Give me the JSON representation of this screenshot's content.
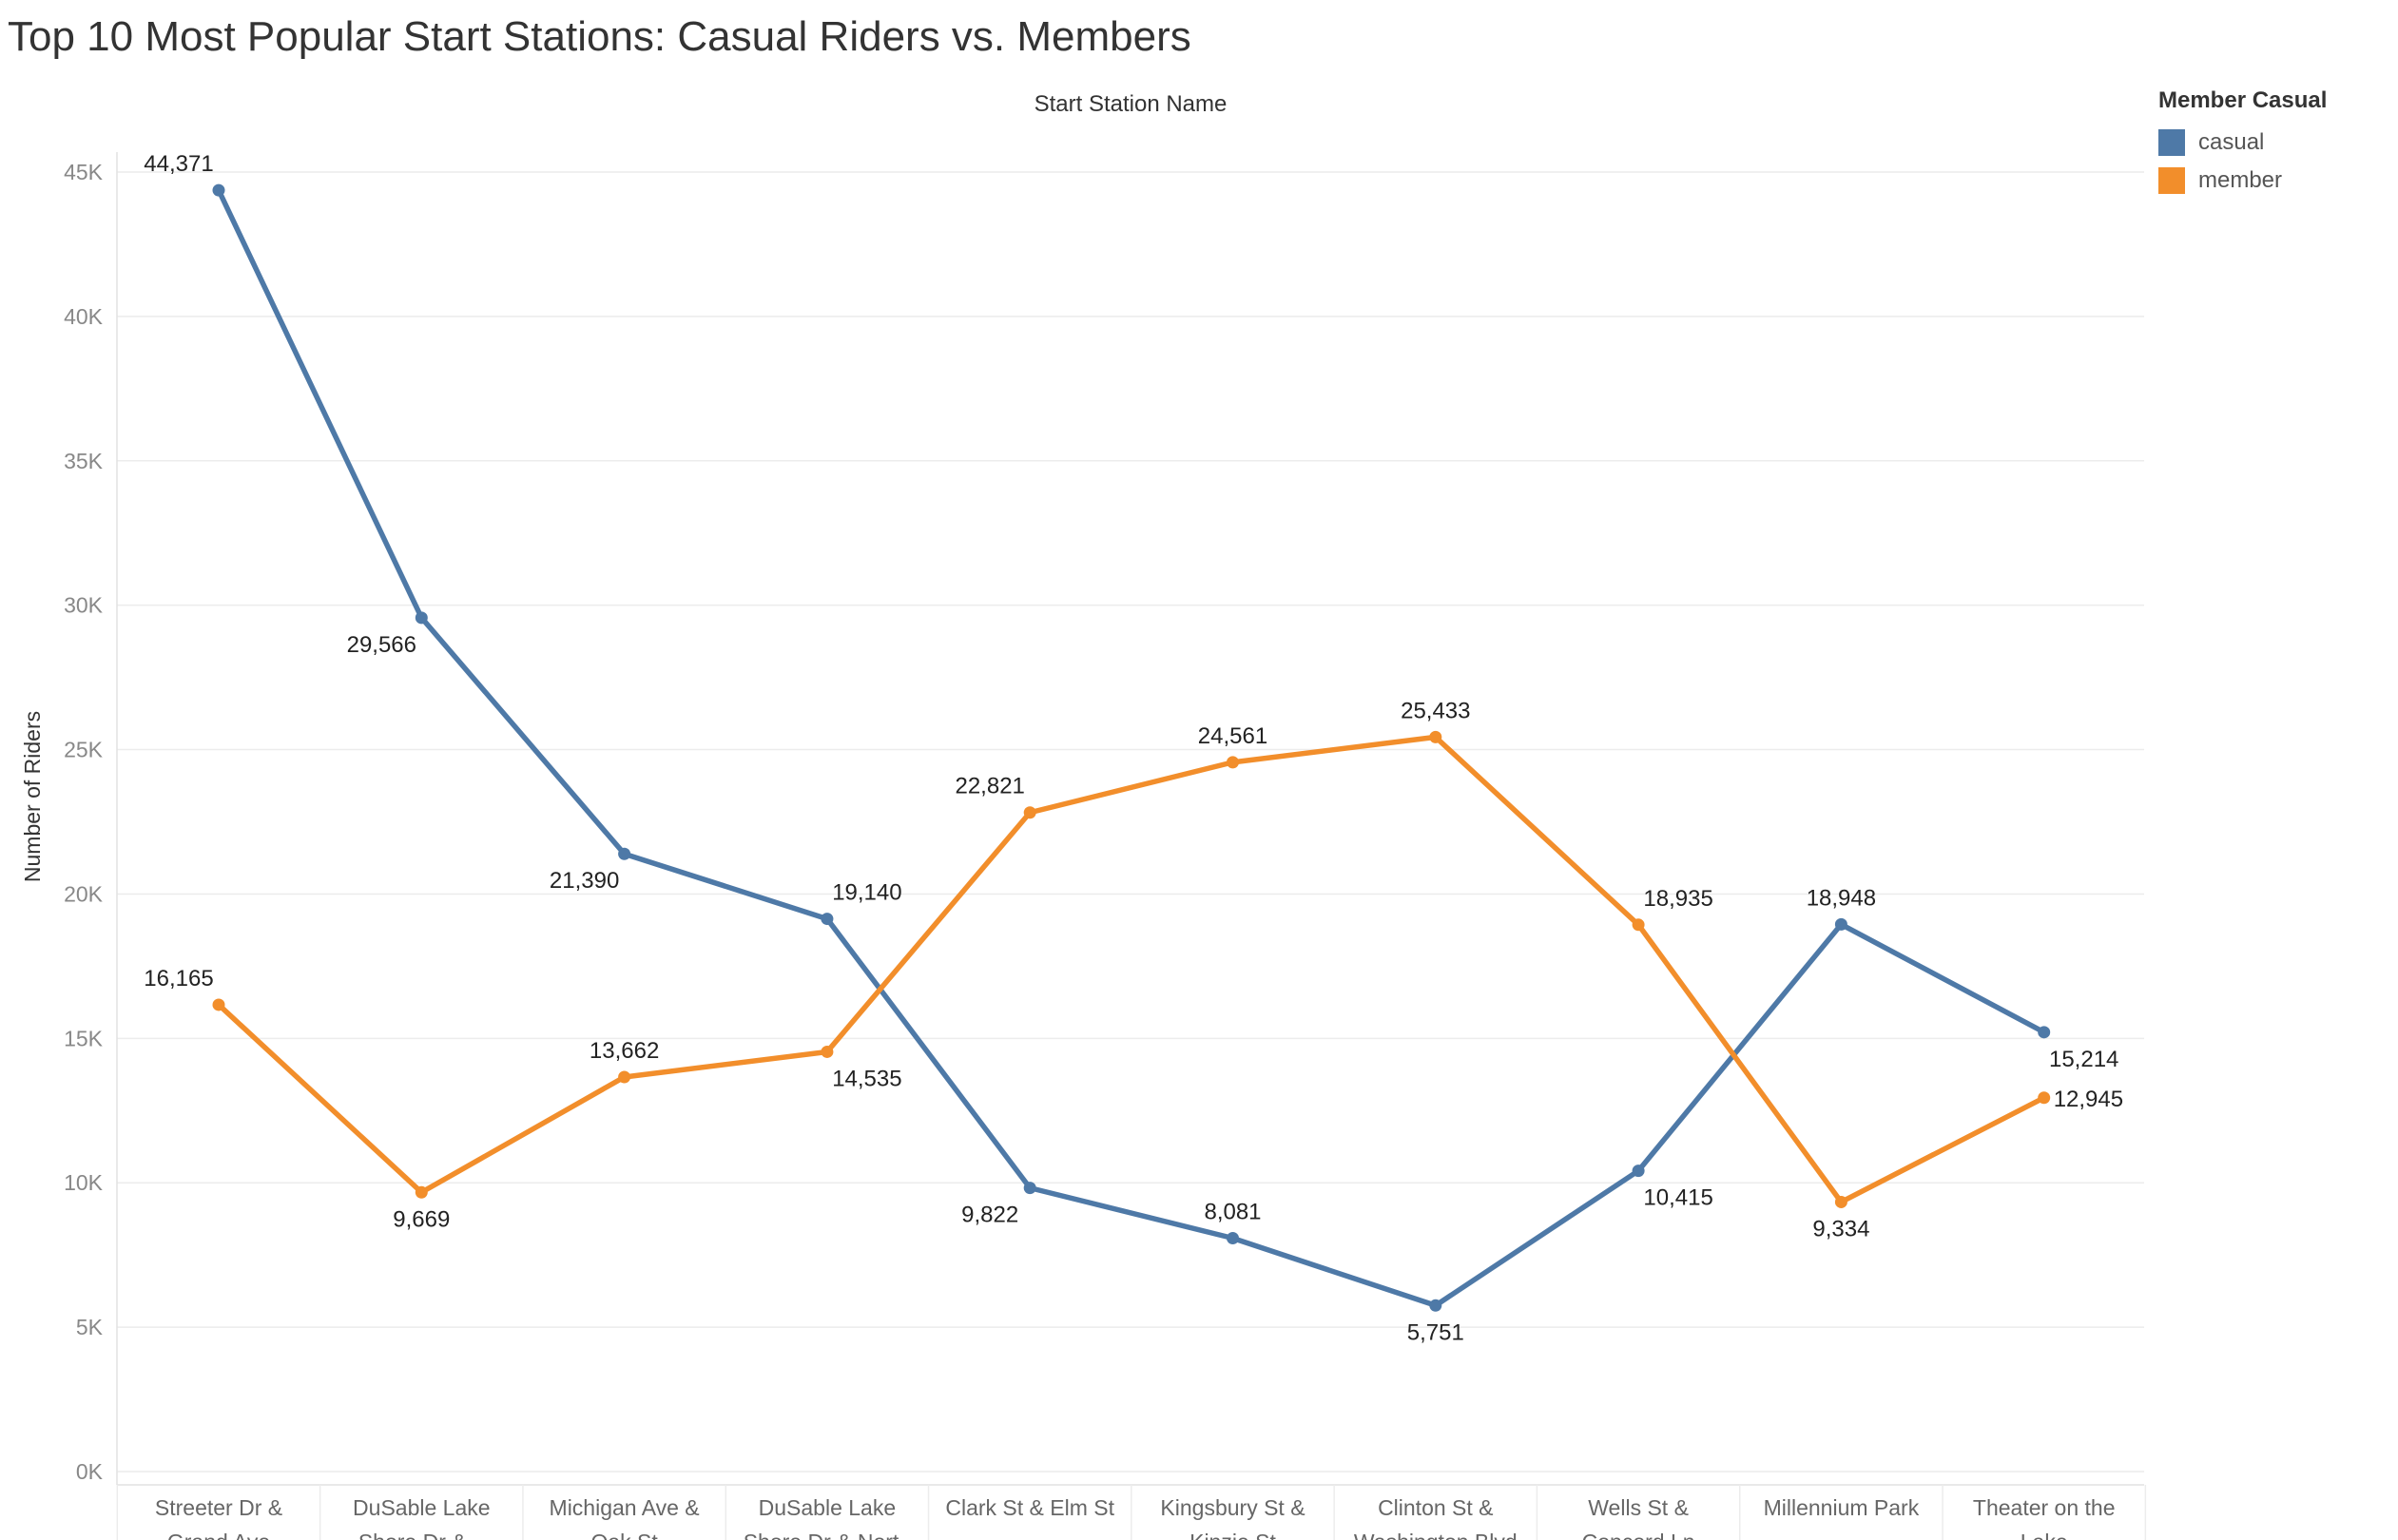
{
  "title": "Top 10 Most Popular Start Stations: Casual Riders vs. Members",
  "legend": {
    "title": "Member Casual",
    "items": [
      {
        "label": "casual",
        "color": "#4e79a7"
      },
      {
        "label": "member",
        "color": "#f28e2b"
      }
    ]
  },
  "chart_data": {
    "type": "line",
    "title": "Top 10 Most Popular Start Stations: Casual Riders vs. Members",
    "xlabel": "Start Station Name",
    "ylabel": "Number of Riders",
    "ylim": [
      0,
      45000
    ],
    "yticks": [
      0,
      5000,
      10000,
      15000,
      20000,
      25000,
      30000,
      35000,
      40000,
      45000
    ],
    "ytick_labels": [
      "0K",
      "5K",
      "10K",
      "15K",
      "20K",
      "25K",
      "30K",
      "35K",
      "40K",
      "45K"
    ],
    "grid": true,
    "legend_position": "top-right",
    "categories": [
      [
        "Streeter Dr &",
        "Grand Ave"
      ],
      [
        "DuSable Lake",
        "Shore Dr & .."
      ],
      [
        "Michigan Ave &",
        "Oak St"
      ],
      [
        "DuSable Lake",
        "Shore Dr & Nort.."
      ],
      [
        "Clark St & Elm St"
      ],
      [
        "Kingsbury St &",
        "Kinzie St"
      ],
      [
        "Clinton St &",
        "Washington Blvd"
      ],
      [
        "Wells St &",
        "Concord Ln"
      ],
      [
        "Millennium Park"
      ],
      [
        "Theater on the",
        "Lake"
      ]
    ],
    "series": [
      {
        "name": "casual",
        "color": "#4e79a7",
        "values": [
          44371,
          29566,
          21390,
          19140,
          9822,
          8081,
          5751,
          10415,
          18948,
          15214
        ],
        "labels": [
          "44,371",
          "29,566",
          "21,390",
          "19,140",
          "9,822",
          "8,081",
          "5,751",
          "10,415",
          "18,948",
          "15,214"
        ],
        "label_positions": [
          "above-left",
          "below-left",
          "below-left",
          "above-right",
          "below-left",
          "above",
          "below",
          "below-right",
          "above",
          "below-right"
        ]
      },
      {
        "name": "member",
        "color": "#f28e2b",
        "values": [
          16165,
          9669,
          13662,
          14535,
          22821,
          24561,
          25433,
          18935,
          9334,
          12945
        ],
        "labels": [
          "16,165",
          "9,669",
          "13,662",
          "14,535",
          "22,821",
          "24,561",
          "25,433",
          "18,935",
          "9,334",
          "12,945"
        ],
        "label_positions": [
          "above-left",
          "below",
          "above",
          "below-right",
          "above-left",
          "above",
          "above",
          "above-right",
          "below",
          "right"
        ]
      }
    ]
  }
}
